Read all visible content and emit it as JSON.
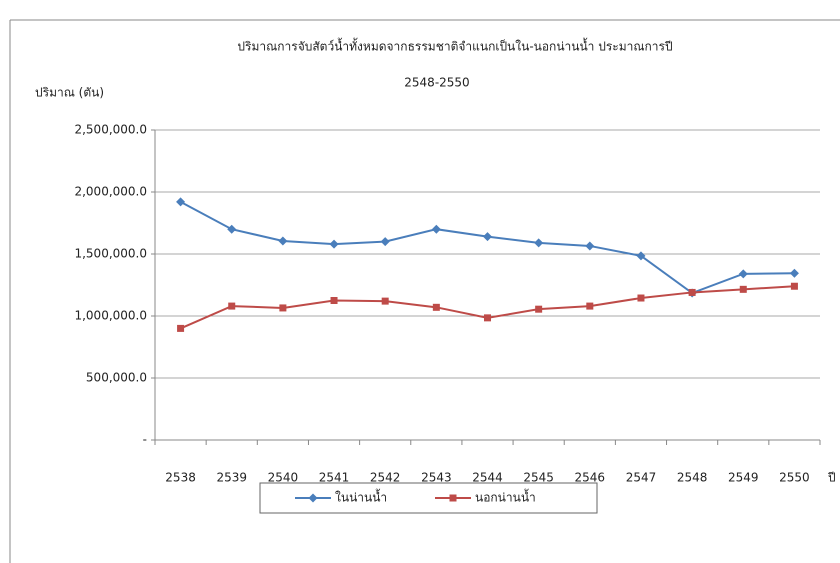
{
  "chart_data": {
    "type": "line",
    "title": "ปริมาณการจับสัตว์น้ำทั้งหมดจากธรรมชาติจำแนกเป็นใน-นอกน่านน้ำ ประมาณการปี",
    "subtitle": "2548-2550",
    "y_label": "ปริมาณ (ตัน)",
    "x_label": "ปี",
    "categories": [
      "2538",
      "2539",
      "2540",
      "2541",
      "2542",
      "2543",
      "2544",
      "2545",
      "2546",
      "2547",
      "2548",
      "2549",
      "2550"
    ],
    "series": [
      {
        "name": "ในน่านน้ำ",
        "color": "#4a7ebb",
        "marker": "diamond",
        "values": [
          1920000,
          1700000,
          1605000,
          1580000,
          1600000,
          1700000,
          1640000,
          1590000,
          1565000,
          1485000,
          1185000,
          1340000,
          1345000
        ]
      },
      {
        "name": "นอกน่านน้ำ",
        "color": "#be4b48",
        "marker": "square",
        "values": [
          900000,
          1080000,
          1065000,
          1125000,
          1120000,
          1070000,
          985000,
          1055000,
          1080000,
          1145000,
          1190000,
          1215000,
          1240000
        ]
      }
    ],
    "ylim": [
      0,
      2500000
    ],
    "yticks": [
      {
        "value": 0,
        "label": "-"
      },
      {
        "value": 500000,
        "label": "500,000.0"
      },
      {
        "value": 1000000,
        "label": "1,000,000.0"
      },
      {
        "value": 1500000,
        "label": "1,500,000.0"
      },
      {
        "value": 2000000,
        "label": "2,000,000.0"
      },
      {
        "value": 2500000,
        "label": "2,500,000.0"
      }
    ],
    "grid": true,
    "legend": "bottom"
  }
}
